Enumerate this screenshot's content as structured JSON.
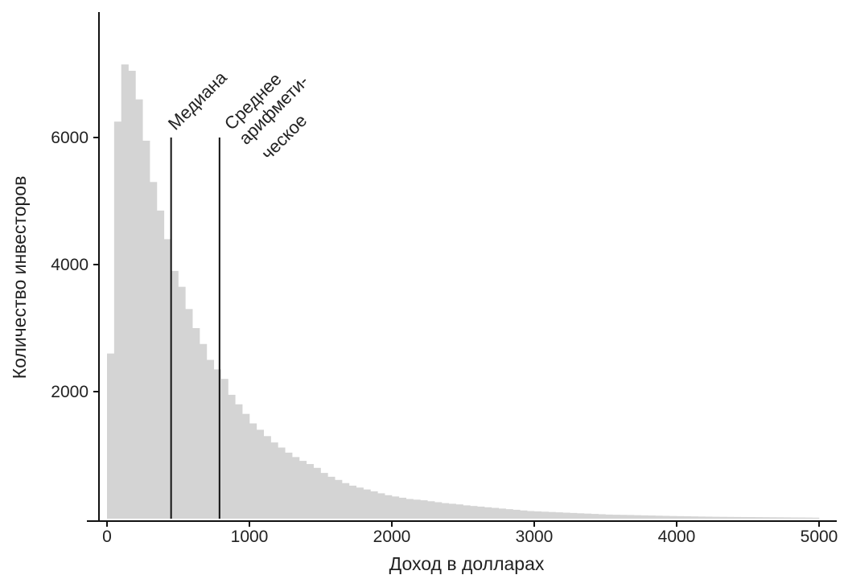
{
  "chart_data": {
    "type": "bar",
    "title": "",
    "xlabel": "Доход в долларах",
    "ylabel": "Количество инвесторов",
    "bin_width": 50,
    "xlim": [
      0,
      5000
    ],
    "ylim": [
      0,
      7000
    ],
    "xticks": [
      0,
      1000,
      2000,
      3000,
      4000,
      5000
    ],
    "yticks": [
      2000,
      4000,
      6000
    ],
    "xtick_labels": [
      "0",
      "1000",
      "2000",
      "3000",
      "4000",
      "5000"
    ],
    "ytick_labels": [
      "2000",
      "4000",
      "6000"
    ],
    "grid": false,
    "bar_color": "#d4d4d4",
    "line_color": "#111111",
    "values": [
      2600,
      6250,
      7150,
      7050,
      6600,
      5950,
      5300,
      4850,
      4400,
      3900,
      3650,
      3300,
      3000,
      2750,
      2500,
      2350,
      2200,
      1950,
      1800,
      1650,
      1500,
      1400,
      1300,
      1200,
      1120,
      1040,
      970,
      910,
      860,
      800,
      720,
      660,
      610,
      560,
      520,
      490,
      460,
      430,
      400,
      370,
      350,
      330,
      310,
      300,
      290,
      275,
      260,
      245,
      235,
      225,
      210,
      200,
      190,
      180,
      170,
      160,
      150,
      140,
      130,
      120,
      115,
      110,
      105,
      100,
      95,
      90,
      85,
      80,
      75,
      70,
      65,
      62,
      60,
      58,
      55,
      52,
      50,
      47,
      45,
      42,
      40,
      38,
      36,
      34,
      32,
      30,
      29,
      28,
      27,
      26,
      25,
      24,
      23,
      22,
      21,
      20,
      19,
      18,
      17,
      16
    ],
    "markers": [
      {
        "label": "Медиана",
        "x": 450,
        "height": 6000
      },
      {
        "label": "Среднее арифмети- ческое",
        "x": 790,
        "height": 6000
      }
    ],
    "annotations": {
      "median_line1": "Медиана",
      "mean_line1": "Среднее",
      "mean_line2": "арифмети-",
      "mean_line3": "ческое"
    }
  }
}
